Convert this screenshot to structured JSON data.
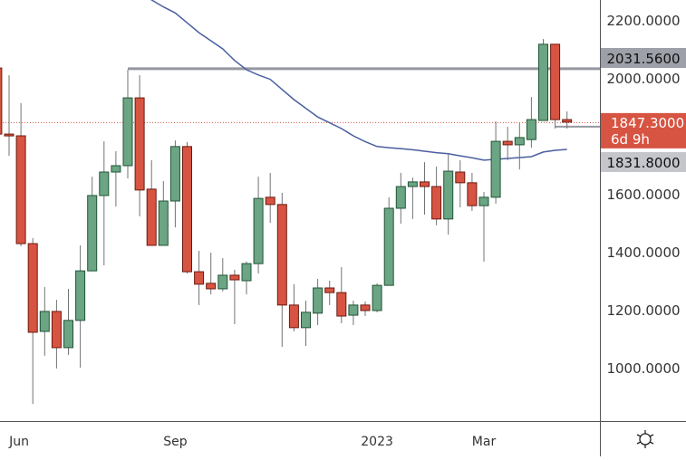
{
  "chart_data": {
    "type": "candlestick",
    "title": "",
    "xlabel": "",
    "ylabel": "",
    "ylim": [
      875,
      2269
    ],
    "grid": false,
    "colors": {
      "up": "#6ba583",
      "up_border": "#225437",
      "down": "#d75442",
      "down_border": "#6b1a10",
      "wick": "#737375",
      "ma": "#4a5fa0",
      "level": "#9598a1"
    },
    "y_ticks": [
      "2200.0000",
      "2000.0000",
      "1600.0000",
      "1400.0000",
      "1200.0000",
      "1000.0000"
    ],
    "y_tick_values": [
      2200,
      2000,
      1600,
      1400,
      1200,
      1000
    ],
    "x_ticks": [
      {
        "label": "Jun",
        "candle": 2
      },
      {
        "label": "Sep",
        "candle": 15
      },
      {
        "label": "2023",
        "candle": 32
      },
      {
        "label": "Mar",
        "candle": 41
      }
    ],
    "candles": [
      [
        2034,
        2034,
        1800,
        1806
      ],
      [
        1806,
        2009,
        1731,
        1800
      ],
      [
        1800,
        1913,
        1419,
        1428
      ],
      [
        1428,
        1447,
        875,
        1122
      ],
      [
        1125,
        1278,
        1041,
        1194
      ],
      [
        1194,
        1234,
        997,
        1069
      ],
      [
        1069,
        1272,
        1044,
        1163
      ],
      [
        1163,
        1422,
        1000,
        1334
      ],
      [
        1334,
        1659,
        1334,
        1594
      ],
      [
        1594,
        1781,
        1353,
        1675
      ],
      [
        1675,
        1747,
        1556,
        1697
      ],
      [
        1697,
        2028,
        1653,
        1931
      ],
      [
        1931,
        2009,
        1522,
        1613
      ],
      [
        1616,
        1716,
        1422,
        1422
      ],
      [
        1422,
        1644,
        1422,
        1575
      ],
      [
        1575,
        1784,
        1484,
        1763
      ],
      [
        1763,
        1778,
        1325,
        1331
      ],
      [
        1331,
        1403,
        1216,
        1288
      ],
      [
        1291,
        1397,
        1253,
        1272
      ],
      [
        1272,
        1378,
        1263,
        1319
      ],
      [
        1319,
        1338,
        1150,
        1303
      ],
      [
        1300,
        1366,
        1253,
        1359
      ],
      [
        1359,
        1659,
        1325,
        1584
      ],
      [
        1588,
        1672,
        1500,
        1563
      ],
      [
        1563,
        1603,
        1072,
        1216
      ],
      [
        1216,
        1288,
        1125,
        1138
      ],
      [
        1138,
        1231,
        1075,
        1191
      ],
      [
        1188,
        1306,
        1147,
        1275
      ],
      [
        1275,
        1300,
        1216,
        1259
      ],
      [
        1259,
        1347,
        1153,
        1178
      ],
      [
        1181,
        1231,
        1147,
        1216
      ],
      [
        1216,
        1228,
        1178,
        1197
      ],
      [
        1197,
        1291,
        1191,
        1284
      ],
      [
        1284,
        1588,
        1284,
        1550
      ],
      [
        1550,
        1672,
        1497,
        1625
      ],
      [
        1625,
        1656,
        1513,
        1641
      ],
      [
        1641,
        1709,
        1528,
        1625
      ],
      [
        1625,
        1694,
        1491,
        1513
      ],
      [
        1513,
        1737,
        1459,
        1678
      ],
      [
        1675,
        1716,
        1553,
        1638
      ],
      [
        1638,
        1672,
        1541,
        1559
      ],
      [
        1559,
        1606,
        1366,
        1588
      ],
      [
        1588,
        1850,
        1566,
        1781
      ],
      [
        1781,
        1831,
        1716,
        1769
      ],
      [
        1769,
        1844,
        1684,
        1794
      ],
      [
        1787,
        1934,
        1759,
        1856
      ],
      [
        1853,
        2134,
        1853,
        2116
      ],
      [
        2116,
        2116,
        1825,
        1856
      ],
      [
        1856,
        1884,
        1825,
        1847.3
      ]
    ],
    "moving_average": [
      null,
      null,
      null,
      null,
      null,
      null,
      null,
      null,
      null,
      null,
      null,
      null,
      2300,
      2269,
      2245,
      2224,
      2190,
      2156,
      2128,
      2100,
      2060,
      2028,
      2010,
      1995,
      1960,
      1925,
      1895,
      1865,
      1845,
      1825,
      1800,
      1780,
      1763,
      1759,
      1756,
      1752,
      1747,
      1742,
      1738,
      1731,
      1724,
      1716,
      1719,
      1722,
      1725,
      1728,
      1744,
      1750,
      1753
    ],
    "levels": [
      {
        "value": 2031.56,
        "label": "2031.5600",
        "from_candle": 11
      },
      {
        "value": 1831.8,
        "label": "1831.8000",
        "from_candle": 47
      }
    ],
    "last_price": {
      "value": 1847.3,
      "label": "1847.3000",
      "countdown": "6d 9h"
    }
  },
  "icons": {
    "settings": "gear-icon"
  }
}
